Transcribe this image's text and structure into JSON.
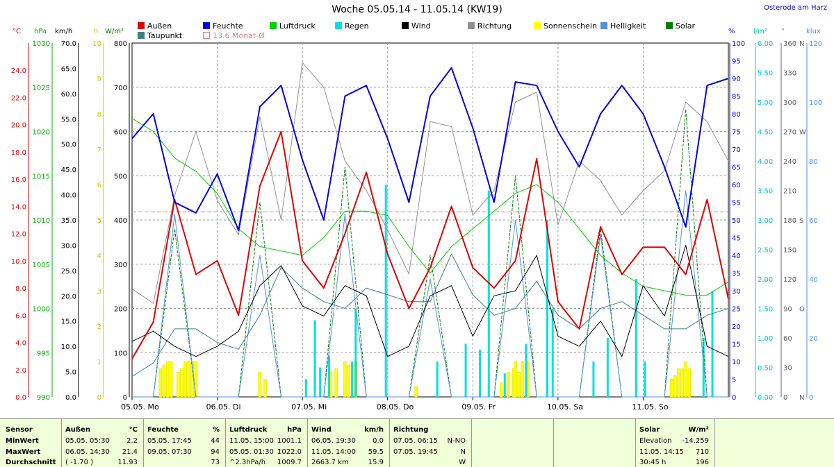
{
  "title": "Woche 05.05.14 - 11.05.14 (KW19)",
  "location": "Osterode am Harz",
  "axes_units": {
    "temp": "°C",
    "pressure": "hPa",
    "wind": "km/h",
    "sun": "h",
    "solar": "W/m²",
    "humidity": "%",
    "rain": "l/m²",
    "direction": "°",
    "brightness": "klux"
  },
  "legend": [
    {
      "label": "Außen",
      "color": "#e00000"
    },
    {
      "label": "Feuchte",
      "color": "#0000e0"
    },
    {
      "label": "Luftdruck",
      "color": "#00d000"
    },
    {
      "label": "Regen",
      "color": "#00e0e0"
    },
    {
      "label": "Wind",
      "color": "#000000"
    },
    {
      "label": "Richtung",
      "color": "#909090"
    },
    {
      "label": "Sonnenschein",
      "color": "#ffff00"
    },
    {
      "label": "Helligkeit",
      "color": "#5090e0"
    },
    {
      "label": "Solar",
      "color": "#008000"
    },
    {
      "label": "Taupunkt",
      "color": "#408080"
    },
    {
      "label": "13.6 Monat-Ø",
      "color": "#e08080"
    }
  ],
  "chart_data": {
    "type": "line",
    "x_labels": [
      "05.05. Mo",
      "06.05. Di",
      "07.05. Mi",
      "08.05. Do",
      "09.05. Fr",
      "10.05. Sa",
      "11.05. So"
    ],
    "monthly_avg_temp": 13.6,
    "axes": {
      "temp_c": {
        "min": 0,
        "max": 26,
        "ticks": [
          "0.0",
          "2.0",
          "4.0",
          "6.0",
          "8.0",
          "10.0",
          "12.0",
          "14.0",
          "16.0",
          "18.0",
          "20.0",
          "22.0",
          "24.0"
        ]
      },
      "pressure_hpa": {
        "min": 990,
        "max": 1030,
        "ticks": [
          "990",
          "995",
          "1000",
          "1005",
          "1010",
          "1015",
          "1020",
          "1025",
          "1030"
        ]
      },
      "wind_kmh": {
        "min": 0,
        "max": 70,
        "ticks": [
          "0.0",
          "5.0",
          "10.0",
          "15.0",
          "20.0",
          "25.0",
          "30.0",
          "35.0",
          "40.0",
          "45.0",
          "50.0",
          "55.0",
          "60.0",
          "65.0",
          "70.0"
        ]
      },
      "sun_h": {
        "min": 0,
        "max": 10,
        "ticks": [
          "0",
          "1",
          "2",
          "3",
          "4",
          "5",
          "6",
          "7",
          "8",
          "9",
          "10"
        ]
      },
      "solar_wm2": {
        "min": 0,
        "max": 800,
        "ticks": [
          "0",
          "100",
          "200",
          "300",
          "400",
          "500",
          "600",
          "700",
          "800"
        ]
      },
      "humidity_pct": {
        "min": 0,
        "max": 100,
        "ticks": [
          "0",
          "5",
          "10",
          "15",
          "20",
          "25",
          "30",
          "35",
          "40",
          "45",
          "50",
          "55",
          "60",
          "65",
          "70",
          "75",
          "80",
          "85",
          "90",
          "95",
          "100"
        ]
      },
      "rain_lm2": {
        "min": 0,
        "max": 6,
        "ticks": [
          "0.00",
          "0.50",
          "1.00",
          "1.50",
          "2.00",
          "2.50",
          "3.00",
          "3.50",
          "4.00",
          "4.50",
          "5.00",
          "5.50",
          "6.00"
        ]
      },
      "direction_deg": {
        "min": 0,
        "max": 360,
        "ticks": [
          "0",
          "30",
          "60",
          "90",
          "120",
          "150",
          "180",
          "210",
          "240",
          "270",
          "300",
          "330",
          "360"
        ],
        "compass": [
          "N",
          "O",
          "S",
          "W",
          "N"
        ]
      },
      "brightness_klux": {
        "min": 0,
        "max": 120,
        "ticks": [
          "0",
          "20",
          "40",
          "60",
          "80",
          "100",
          "120"
        ]
      }
    },
    "x_hours": [
      0,
      6,
      12,
      18,
      24,
      30,
      36,
      42,
      48,
      54,
      60,
      66,
      72,
      78,
      84,
      90,
      96,
      102,
      108,
      114,
      120,
      126,
      132,
      138,
      144,
      150,
      156,
      162,
      168
    ],
    "series": [
      {
        "name": "Außen",
        "axis": "temp_c",
        "values": [
          2.8,
          5.5,
          14.5,
          9,
          10,
          6,
          15.5,
          19.5,
          10,
          8,
          12,
          16.5,
          10.5,
          6.5,
          9.5,
          14,
          9.5,
          8,
          10,
          17.5,
          7,
          5,
          12.5,
          9,
          11,
          11,
          9,
          14.5,
          7.2
        ]
      },
      {
        "name": "Feuchte",
        "axis": "humidity_pct",
        "values": [
          73,
          80,
          55,
          52,
          63,
          47,
          82,
          88,
          67,
          50,
          85,
          88,
          73,
          55,
          85,
          93,
          76,
          55,
          89,
          88,
          75,
          65,
          80,
          88,
          80,
          65,
          48,
          88,
          90
        ]
      },
      {
        "name": "Luftdruck",
        "axis": "pressure_hpa",
        "values": [
          1021.5,
          1020,
          1017,
          1015.5,
          1013,
          1009,
          1007,
          1006.5,
          1006,
          1008,
          1011,
          1011,
          1010.5,
          1007,
          1004,
          1007,
          1009,
          1011,
          1013,
          1014,
          1012,
          1009,
          1006,
          1004,
          1002.5,
          1002,
          1001.5,
          1001.5,
          1003
        ]
      },
      {
        "name": "Wind",
        "axis": "wind_kmh",
        "values": [
          11,
          13,
          10,
          8,
          10,
          13,
          22,
          26,
          18,
          16,
          22,
          20,
          8,
          10,
          20,
          22,
          12,
          20,
          21,
          28,
          12,
          10,
          15,
          8,
          22,
          16,
          30,
          10,
          8
        ]
      },
      {
        "name": "Richtung",
        "axis": "direction_deg",
        "values": [
          110,
          95,
          205,
          270,
          200,
          165,
          285,
          180,
          340,
          315,
          240,
          210,
          170,
          125,
          280,
          275,
          185,
          210,
          300,
          310,
          175,
          240,
          220,
          185,
          210,
          230,
          300,
          280,
          240
        ]
      },
      {
        "name": "Taupunkt",
        "axis": "temp_c",
        "values": [
          1.5,
          2.5,
          5,
          5,
          4,
          3.5,
          6,
          9.5,
          8,
          7,
          6.5,
          8,
          7.5,
          7,
          7,
          10.5,
          7.5,
          6,
          6.5,
          8.5,
          6,
          5,
          6.5,
          7,
          6,
          5,
          5,
          6,
          6.5
        ]
      },
      {
        "name": "Solar",
        "axis": "solar_wm2",
        "values": [
          0,
          0,
          380,
          0,
          0,
          0,
          440,
          0,
          0,
          0,
          520,
          0,
          0,
          0,
          320,
          0,
          0,
          0,
          500,
          0,
          0,
          0,
          380,
          0,
          0,
          0,
          650,
          0,
          0
        ]
      },
      {
        "name": "Helligkeit",
        "axis": "brightness_klux",
        "values": [
          0,
          0,
          62,
          0,
          0,
          0,
          48,
          0,
          0,
          0,
          62,
          0,
          0,
          0,
          40,
          0,
          0,
          0,
          60,
          0,
          0,
          0,
          55,
          0,
          0,
          0,
          70,
          0,
          0
        ]
      }
    ],
    "rain_bars": [
      {
        "hour": 49,
        "value": 0.3
      },
      {
        "hour": 51.5,
        "value": 1.3
      },
      {
        "hour": 53,
        "value": 0.5
      },
      {
        "hour": 55.5,
        "value": 0.7
      },
      {
        "hour": 62,
        "value": 0.6
      },
      {
        "hour": 63,
        "value": 1.5
      },
      {
        "hour": 71.5,
        "value": 3.6
      },
      {
        "hour": 86,
        "value": 0.6
      },
      {
        "hour": 94,
        "value": 0.9
      },
      {
        "hour": 98,
        "value": 0.8
      },
      {
        "hour": 100.5,
        "value": 3.5
      },
      {
        "hour": 105,
        "value": 0.4
      },
      {
        "hour": 111,
        "value": 0.9
      },
      {
        "hour": 117,
        "value": 3.0
      },
      {
        "hour": 118.5,
        "value": 1.5
      },
      {
        "hour": 130,
        "value": 0.6
      },
      {
        "hour": 134,
        "value": 1.0
      },
      {
        "hour": 142,
        "value": 2.0
      },
      {
        "hour": 144.5,
        "value": 0.6
      },
      {
        "hour": 161,
        "value": 1.0
      },
      {
        "hour": 163.5,
        "value": 1.8
      }
    ],
    "sun_bars": [
      {
        "hour": 8,
        "value": 0.8
      },
      {
        "hour": 9,
        "value": 0.9
      },
      {
        "hour": 10,
        "value": 1.0
      },
      {
        "hour": 11,
        "value": 1.0
      },
      {
        "hour": 13,
        "value": 0.7
      },
      {
        "hour": 14,
        "value": 0.8
      },
      {
        "hour": 15,
        "value": 1.0
      },
      {
        "hour": 16,
        "value": 1.0
      },
      {
        "hour": 17,
        "value": 1.0
      },
      {
        "hour": 18,
        "value": 1.0
      },
      {
        "hour": 36,
        "value": 0.7
      },
      {
        "hour": 37.5,
        "value": 0.5
      },
      {
        "hour": 56,
        "value": 0.7
      },
      {
        "hour": 57.5,
        "value": 0.8
      },
      {
        "hour": 60,
        "value": 1.0
      },
      {
        "hour": 61,
        "value": 0.9
      },
      {
        "hour": 63,
        "value": 1.0
      },
      {
        "hour": 80,
        "value": 0.3
      },
      {
        "hour": 104,
        "value": 0.4
      },
      {
        "hour": 106,
        "value": 0.7
      },
      {
        "hour": 107.5,
        "value": 0.8
      },
      {
        "hour": 108,
        "value": 1.0
      },
      {
        "hour": 109,
        "value": 0.7
      },
      {
        "hour": 110,
        "value": 1.0
      },
      {
        "hour": 111.5,
        "value": 1.0
      },
      {
        "hour": 152,
        "value": 0.5
      },
      {
        "hour": 153,
        "value": 0.6
      },
      {
        "hour": 154,
        "value": 0.8
      },
      {
        "hour": 155,
        "value": 0.8
      },
      {
        "hour": 156,
        "value": 1.0
      },
      {
        "hour": 157,
        "value": 0.8
      }
    ]
  },
  "table": {
    "row_labels": [
      "Sensor",
      "MinWert",
      "MaxWert",
      "Durchschnitt"
    ],
    "columns": [
      {
        "header": "Außen",
        "unit": "°C",
        "rows": [
          [
            "05.05.  05:30",
            "2.2"
          ],
          [
            "06.05.  14:30",
            "21.4"
          ],
          [
            "( -1.70 )",
            "11.93"
          ]
        ]
      },
      {
        "header": "Feuchte",
        "unit": "%",
        "rows": [
          [
            "05.05.  17:45",
            "44"
          ],
          [
            "09.05.  07:30",
            "94"
          ],
          [
            "",
            "73"
          ]
        ]
      },
      {
        "header": "Luftdruck",
        "unit": "hPa",
        "rows": [
          [
            "11.05.  15:00",
            "1001.1"
          ],
          [
            "05.05.  01:30",
            "1022.0"
          ],
          [
            "^2.3hPa/h",
            "1009.7"
          ]
        ]
      },
      {
        "header": "Wind",
        "unit": "km/h",
        "rows": [
          [
            "06.05.  19:30",
            "0.0"
          ],
          [
            "11.05.  14:00",
            "59.5"
          ],
          [
            "2663.7 km",
            "15.9"
          ]
        ]
      },
      {
        "header": "Richtung",
        "unit": "",
        "rows": [
          [
            "07.05.  06:15",
            "N-NO"
          ],
          [
            "07.05.  19:45",
            "N"
          ],
          [
            "",
            "W"
          ]
        ]
      },
      {
        "header": "Solar",
        "unit": "W/m²",
        "rows": [
          [
            "Elevation",
            "-14.259"
          ],
          [
            "11.05.  14:15",
            "710"
          ],
          [
            "30:45 h",
            "196"
          ]
        ]
      }
    ]
  }
}
